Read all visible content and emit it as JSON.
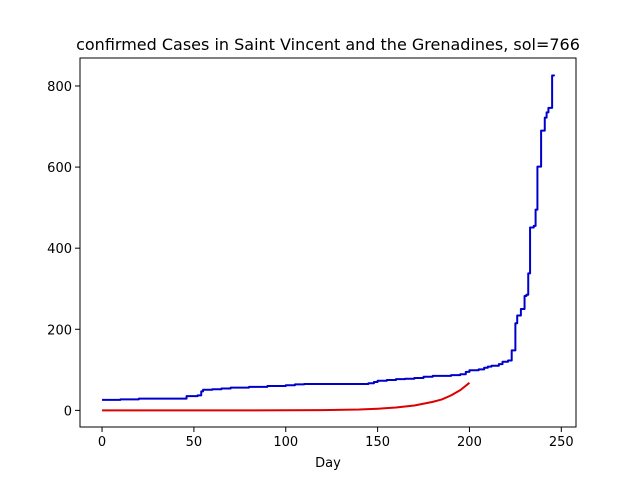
{
  "chart_data": {
    "type": "line",
    "title": "confirmed Cases in Saint Vincent and the Grenadines, sol=766",
    "xlabel": "Day",
    "ylabel": "",
    "xlim": [
      -12,
      258
    ],
    "ylim": [
      -41,
      869
    ],
    "xticks": [
      0,
      50,
      100,
      150,
      200,
      250
    ],
    "yticks": [
      0,
      200,
      400,
      600,
      800
    ],
    "grid": false,
    "legend": "none",
    "series": [
      {
        "color": "#0000cc",
        "style": "steps",
        "points": [
          [
            0,
            26
          ],
          [
            10,
            27
          ],
          [
            20,
            29
          ],
          [
            30,
            29
          ],
          [
            45,
            29
          ],
          [
            46,
            35
          ],
          [
            52,
            37
          ],
          [
            54,
            47
          ],
          [
            55,
            51
          ],
          [
            60,
            52
          ],
          [
            65,
            54
          ],
          [
            70,
            56
          ],
          [
            80,
            58
          ],
          [
            90,
            60
          ],
          [
            100,
            62
          ],
          [
            105,
            64
          ],
          [
            110,
            65
          ],
          [
            120,
            65
          ],
          [
            130,
            65
          ],
          [
            140,
            65
          ],
          [
            145,
            67
          ],
          [
            148,
            70
          ],
          [
            150,
            73
          ],
          [
            155,
            75
          ],
          [
            160,
            77
          ],
          [
            165,
            78
          ],
          [
            170,
            80
          ],
          [
            175,
            83
          ],
          [
            180,
            85
          ],
          [
            185,
            85
          ],
          [
            190,
            87
          ],
          [
            195,
            89
          ],
          [
            198,
            95
          ],
          [
            200,
            99
          ],
          [
            205,
            101
          ],
          [
            208,
            105
          ],
          [
            210,
            108
          ],
          [
            212,
            110
          ],
          [
            216,
            114
          ],
          [
            218,
            120
          ],
          [
            221,
            123
          ],
          [
            223,
            148
          ],
          [
            225,
            215
          ],
          [
            226,
            234
          ],
          [
            228,
            250
          ],
          [
            230,
            282
          ],
          [
            231,
            285
          ],
          [
            232,
            338
          ],
          [
            233,
            451
          ],
          [
            235,
            455
          ],
          [
            236,
            495
          ],
          [
            237,
            601
          ],
          [
            239,
            690
          ],
          [
            241,
            722
          ],
          [
            242,
            735
          ],
          [
            243,
            746
          ],
          [
            245,
            826
          ],
          [
            246,
            828
          ]
        ]
      },
      {
        "color": "#dd0000",
        "style": "smooth",
        "points": [
          [
            0,
            0
          ],
          [
            60,
            0
          ],
          [
            100,
            0.2
          ],
          [
            120,
            0.6
          ],
          [
            140,
            2
          ],
          [
            150,
            4
          ],
          [
            160,
            7
          ],
          [
            170,
            12
          ],
          [
            180,
            21
          ],
          [
            185,
            27
          ],
          [
            190,
            37
          ],
          [
            195,
            50
          ],
          [
            200,
            68
          ]
        ]
      }
    ]
  }
}
